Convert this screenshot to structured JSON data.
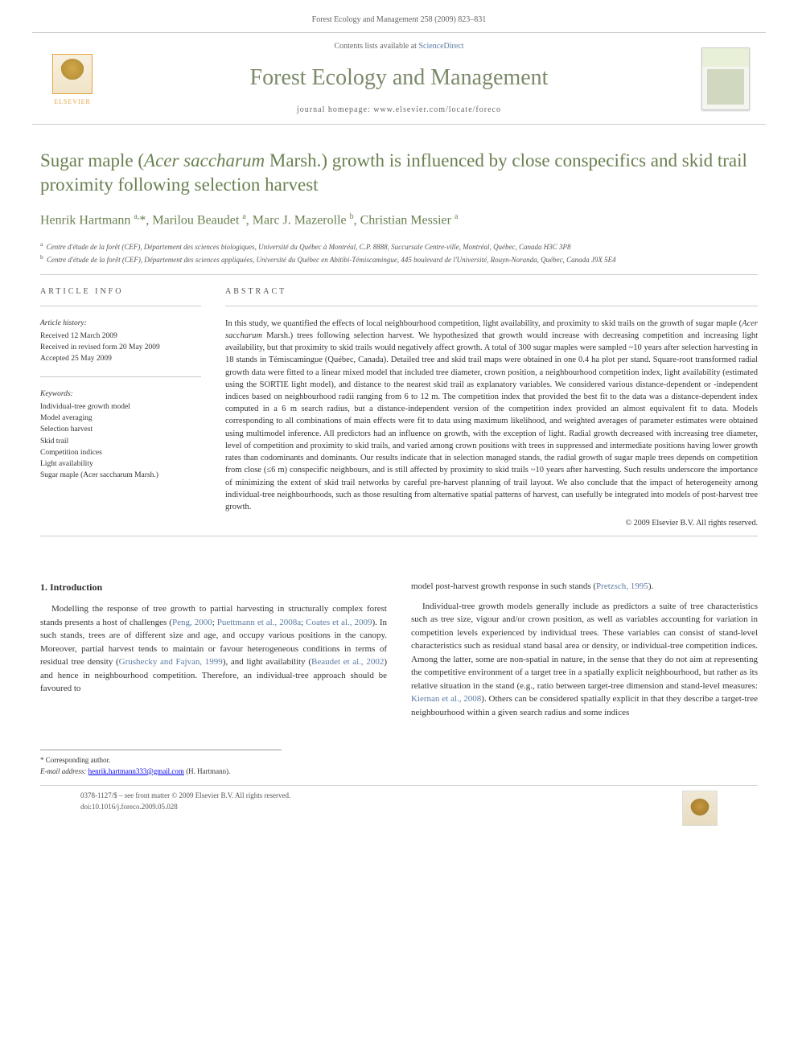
{
  "header": {
    "citation": "Forest Ecology and Management 258 (2009) 823–831"
  },
  "journalBar": {
    "publisher": "ELSEVIER",
    "contentsPrefix": "Contents lists available at ",
    "contentsLink": "ScienceDirect",
    "journalName": "Forest Ecology and Management",
    "homepagePrefix": "journal homepage: ",
    "homepageUrl": "www.elsevier.com/locate/foreco"
  },
  "article": {
    "titleHtml": "Sugar maple (<em>Acer saccharum</em> Marsh.) growth is influenced by close conspecifics and skid trail proximity following selection harvest",
    "authorsHtml": "Henrik Hartmann <sup>a,</sup>*, Marilou Beaudet <sup>a</sup>, Marc J. Mazerolle <sup>b</sup>, Christian Messier <sup>a</sup>",
    "affiliations": [
      {
        "label": "a",
        "text": "Centre d'étude de la forêt (CEF), Département des sciences biologiques, Université du Québec à Montréal, C.P. 8888, Succursale Centre-ville, Montréal, Québec, Canada H3C 3P8"
      },
      {
        "label": "b",
        "text": "Centre d'étude de la forêt (CEF), Département des sciences appliquées, Université du Québec en Abitibi-Témiscamingue, 445 boulevard de l'Université, Rouyn-Noranda, Québec, Canada J9X 5E4"
      }
    ]
  },
  "info": {
    "heading": "ARTICLE INFO",
    "historyHead": "Article history:",
    "history": [
      "Received 12 March 2009",
      "Received in revised form 20 May 2009",
      "Accepted 25 May 2009"
    ],
    "keywordsHead": "Keywords:",
    "keywords": [
      "Individual-tree growth model",
      "Model averaging",
      "Selection harvest",
      "Skid trail",
      "Competition indices",
      "Light availability",
      "Sugar maple (Acer saccharum Marsh.)"
    ]
  },
  "abstract": {
    "heading": "ABSTRACT",
    "bodyHtml": "In this study, we quantified the effects of local neighbourhood competition, light availability, and proximity to skid trails on the growth of sugar maple (<em>Acer saccharum</em> Marsh.) trees following selection harvest. We hypothesized that growth would increase with decreasing competition and increasing light availability, but that proximity to skid trails would negatively affect growth. A total of 300 sugar maples were sampled ~10 years after selection harvesting in 18 stands in Témiscamingue (Québec, Canada). Detailed tree and skid trail maps were obtained in one 0.4 ha plot per stand. Square-root transformed radial growth data were fitted to a linear mixed model that included tree diameter, crown position, a neighbourhood competition index, light availability (estimated using the SORTIE light model), and distance to the nearest skid trail as explanatory variables. We considered various distance-dependent or -independent indices based on neighbourhood radii ranging from 6 to 12 m. The competition index that provided the best fit to the data was a distance-dependent index computed in a 6 m search radius, but a distance-independent version of the competition index provided an almost equivalent fit to data. Models corresponding to all combinations of main effects were fit to data using maximum likelihood, and weighted averages of parameter estimates were obtained using multimodel inference. All predictors had an influence on growth, with the exception of light. Radial growth decreased with increasing tree diameter, level of competition and proximity to skid trails, and varied among crown positions with trees in suppressed and intermediate positions having lower growth rates than codominants and dominants. Our results indicate that in selection managed stands, the radial growth of sugar maple trees depends on competition from close (≤6 m) conspecific neighbours, and is still affected by proximity to skid trails ~10 years after harvesting. Such results underscore the importance of minimizing the extent of skid trail networks by careful pre-harvest planning of trail layout. We also conclude that the impact of heterogeneity among individual-tree neighbourhoods, such as those resulting from alternative spatial patterns of harvest, can usefully be integrated into models of post-harvest tree growth.",
    "copyright": "© 2009 Elsevier B.V. All rights reserved."
  },
  "body": {
    "introHeading": "1. Introduction",
    "col1p1Html": "Modelling the response of tree growth to partial harvesting in structurally complex forest stands presents a host of challenges (<a href='#'>Peng, 2000</a>; <a href='#'>Puettmann et al., 2008a</a>; <a href='#'>Coates et al., 2009</a>). In such stands, trees are of different size and age, and occupy various positions in the canopy. Moreover, partial harvest tends to maintain or favour heterogeneous conditions in terms of residual tree density (<a href='#'>Grushecky and Fajvan, 1999</a>), and light availability (<a href='#'>Beaudet et al., 2002</a>) and hence in neighbourhood competition. Therefore, an individual-tree approach should be favoured to",
    "col2p1Html": "model post-harvest growth response in such stands (<a href='#'>Pretzsch, 1995</a>).",
    "col2p2Html": "Individual-tree growth models generally include as predictors a suite of tree characteristics such as tree size, vigour and/or crown position, as well as variables accounting for variation in competition levels experienced by individual trees. These variables can consist of stand-level characteristics such as residual stand basal area or density, or individual-tree competition indices. Among the latter, some are non-spatial in nature, in the sense that they do not aim at representing the competitive environment of a target tree in a spatially explicit neighbourhood, but rather as its relative situation in the stand (e.g., ratio between target-tree dimension and stand-level measures: <a href='#'>Kiernan et al., 2008</a>). Others can be considered spatially explicit in that they describe a target-tree neighbourhood within a given search radius and some indices"
  },
  "corresponding": {
    "label": "* Corresponding author.",
    "emailLabel": "E-mail address:",
    "email": "henrik.hartmann333@gmail.com",
    "person": "(H. Hartmann)."
  },
  "footer": {
    "line1": "0378-1127/$ – see front matter © 2009 Elsevier B.V. All rights reserved.",
    "line2": "doi:10.1016/j.foreco.2009.05.028"
  }
}
